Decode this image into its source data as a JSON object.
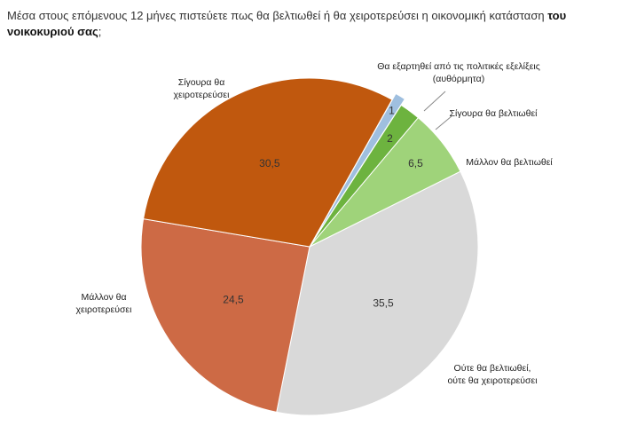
{
  "title": {
    "text": "Μέσα στους επόμενους 12 μήνες πιστεύετε πως θα βελτιωθεί ή θα χειροτερεύσει η οικονομική κατάσταση",
    "bold": "του νοικοκυριού σας",
    "end": ";"
  },
  "chart_data": {
    "type": "pie",
    "slices": [
      {
        "label": "Θα εξαρτηθεί από τις πολιτικές εξελίξεις (αυθόρμητα)",
        "value": 1,
        "value_label": "1",
        "color": "#9fbfdf",
        "exploded": true
      },
      {
        "label": "Σίγουρα θα βελτιωθεί",
        "value": 2,
        "value_label": "2",
        "color": "#6db33f",
        "exploded": false
      },
      {
        "label": "Μάλλον θα βελτιωθεί",
        "value": 6.5,
        "value_label": "6,5",
        "color": "#9fd37a",
        "exploded": false
      },
      {
        "label": "Ούτε θα βελτιωθεί, ούτε θα χειροτερεύσει",
        "value": 35.5,
        "value_label": "35,5",
        "color": "#d9d9d9",
        "exploded": false
      },
      {
        "label": "Μάλλον θα χειροτερεύσει",
        "value": 24.5,
        "value_label": "24,5",
        "color": "#cd6a45",
        "exploded": false
      },
      {
        "label": "Σίγουρα θα χειροτερεύσει",
        "value": 30.5,
        "value_label": "30,5",
        "color": "#c0580e",
        "exploded": false
      }
    ]
  }
}
